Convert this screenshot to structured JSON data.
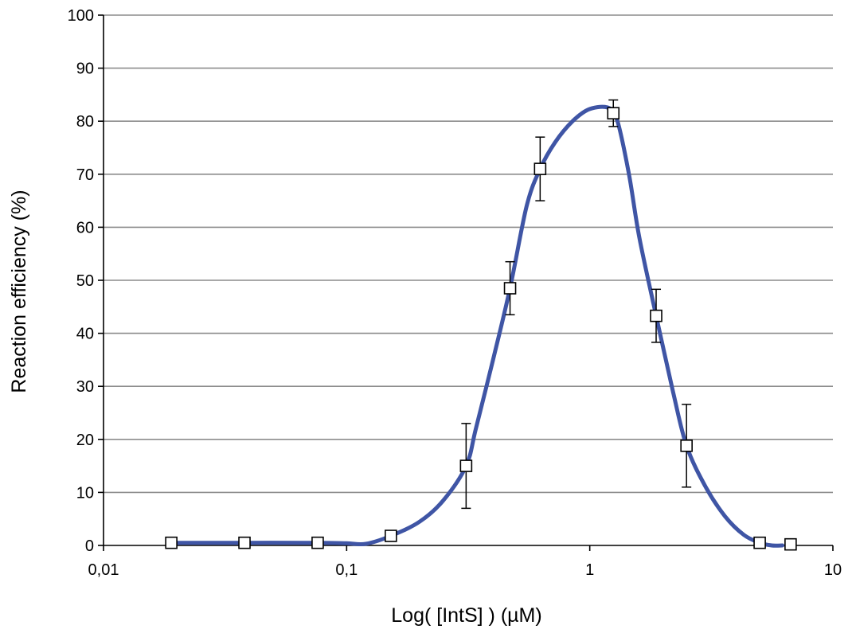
{
  "chart_data": {
    "type": "scatter",
    "title": "",
    "xlabel": "Log( [IntS] ) (µM)",
    "ylabel": "Reaction efficiency (%)",
    "x_scale": "log",
    "xlim": [
      0.01,
      10
    ],
    "ylim": [
      0,
      100
    ],
    "x_ticks": [
      0.01,
      0.1,
      1,
      10
    ],
    "x_tick_labels": [
      "0,01",
      "0,1",
      "1",
      "10"
    ],
    "y_ticks": [
      0,
      10,
      20,
      30,
      40,
      50,
      60,
      70,
      80,
      90,
      100
    ],
    "y_tick_labels": [
      "0",
      "10",
      "20",
      "30",
      "40",
      "50",
      "60",
      "70",
      "80",
      "90",
      "100"
    ],
    "grid": "horizontal",
    "legend": "none",
    "series": [
      {
        "marker": "open-square",
        "points": [
          {
            "x": 0.019,
            "y": 0.5,
            "err": null
          },
          {
            "x": 0.038,
            "y": 0.5,
            "err": null
          },
          {
            "x": 0.076,
            "y": 0.5,
            "err": null
          },
          {
            "x": 0.152,
            "y": 1.8,
            "err": null
          },
          {
            "x": 0.31,
            "y": 15.0,
            "err": 8.0
          },
          {
            "x": 0.47,
            "y": 48.5,
            "err": 5.0
          },
          {
            "x": 0.625,
            "y": 71.0,
            "err": 6.0
          },
          {
            "x": 1.25,
            "y": 81.5,
            "err": 2.5
          },
          {
            "x": 1.875,
            "y": 43.3,
            "err": 5.0
          },
          {
            "x": 2.5,
            "y": 18.8,
            "err": 7.8
          },
          {
            "x": 5.0,
            "y": 0.5,
            "err": null
          },
          {
            "x": 6.7,
            "y": 0.2,
            "err": null
          }
        ]
      }
    ],
    "fit_curve": {
      "color": "#3f55a5",
      "x": [
        0.019,
        0.038,
        0.076,
        0.1,
        0.12,
        0.152,
        0.2,
        0.25,
        0.31,
        0.34,
        0.4,
        0.47,
        0.55,
        0.625,
        0.72,
        0.85,
        1.0,
        1.2,
        1.3,
        1.45,
        1.6,
        1.875,
        2.2,
        2.5,
        3.0,
        3.6,
        4.3,
        5.0,
        5.6,
        6.2
      ],
      "y": [
        0.5,
        0.5,
        0.5,
        0.4,
        0.3,
        1.8,
        4.5,
        8.5,
        15.0,
        22.0,
        35.0,
        48.5,
        64.0,
        71.0,
        76.0,
        80.0,
        82.3,
        82.5,
        80.0,
        70.0,
        58.0,
        43.3,
        29.0,
        18.8,
        11.0,
        5.5,
        2.0,
        0.5,
        0.0,
        0.0
      ]
    },
    "marker_fill": "#ffffff",
    "marker_stroke": "#000000",
    "gridline_color": "#8c8c8c",
    "axis_color": "#000000"
  }
}
